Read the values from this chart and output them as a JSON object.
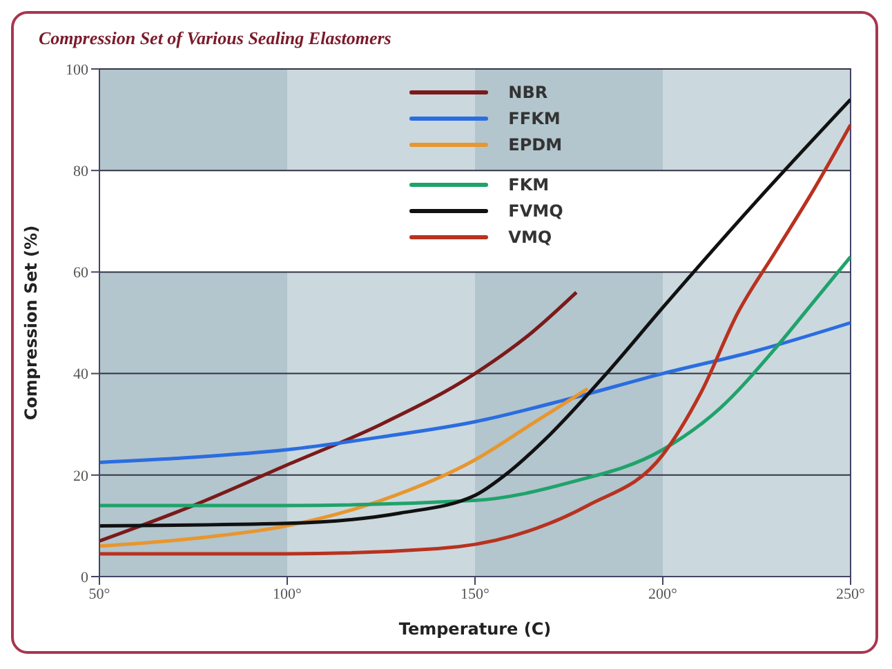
{
  "chart_data": {
    "type": "line",
    "title": "Compression Set of Various Sealing Elastomers",
    "xlabel": "Temperature (C)",
    "ylabel": "Compression Set (%)",
    "xlim": [
      50,
      250
    ],
    "xticks": [
      {
        "value": 50,
        "label": "50°"
      },
      {
        "value": 100,
        "label": "100°"
      },
      {
        "value": 150,
        "label": "150°"
      },
      {
        "value": 200,
        "label": "200°"
      },
      {
        "value": 250,
        "label": "250°"
      }
    ],
    "ylim": [
      0,
      100
    ],
    "yticks": [
      0,
      20,
      40,
      60,
      80,
      100
    ],
    "grid": "y",
    "legend": "top",
    "bands": [
      {
        "axis": "x",
        "from": 50,
        "to": 100,
        "color": "#b3c5cd"
      },
      {
        "axis": "x",
        "from": 150,
        "to": 200,
        "color": "#b3c5cd"
      },
      {
        "axis": "y",
        "from": 60,
        "to": 80,
        "color": "#ffffff"
      }
    ],
    "series": [
      {
        "name": "NBR",
        "color": "#7a1a1a",
        "x": [
          50,
          75,
          100,
          125,
          150,
          165,
          177
        ],
        "values": [
          7,
          14,
          22,
          30,
          40,
          48,
          56
        ]
      },
      {
        "name": "FFKM",
        "color": "#2a6de0",
        "x": [
          50,
          75,
          100,
          125,
          150,
          175,
          200,
          225,
          250
        ],
        "values": [
          22.5,
          23.5,
          25,
          27.5,
          30.5,
          35,
          40,
          44.5,
          50
        ]
      },
      {
        "name": "EPDM",
        "color": "#e8962e",
        "x": [
          50,
          75,
          100,
          125,
          150,
          165,
          180
        ],
        "values": [
          6,
          7.5,
          10,
          15,
          23,
          30,
          37
        ]
      },
      {
        "name": "FKM",
        "color": "#1fa36b",
        "x": [
          50,
          100,
          150,
          175,
          200,
          215,
          230,
          240,
          250
        ],
        "values": [
          14,
          14,
          15,
          18.5,
          25,
          33,
          45,
          54,
          63
        ]
      },
      {
        "name": "FVMQ",
        "color": "#111111",
        "x": [
          50,
          100,
          130,
          150,
          158,
          170,
          185,
          200,
          225,
          250
        ],
        "values": [
          10,
          10.5,
          12.5,
          16,
          20,
          28,
          40,
          53,
          74,
          94
        ]
      },
      {
        "name": "VMQ",
        "color": "#b8321f",
        "x": [
          50,
          100,
          140,
          160,
          180,
          200,
          210,
          220,
          230,
          240,
          250
        ],
        "values": [
          4.5,
          4.5,
          5.5,
          8,
          14,
          24,
          36,
          52,
          64,
          76,
          89
        ]
      }
    ]
  }
}
